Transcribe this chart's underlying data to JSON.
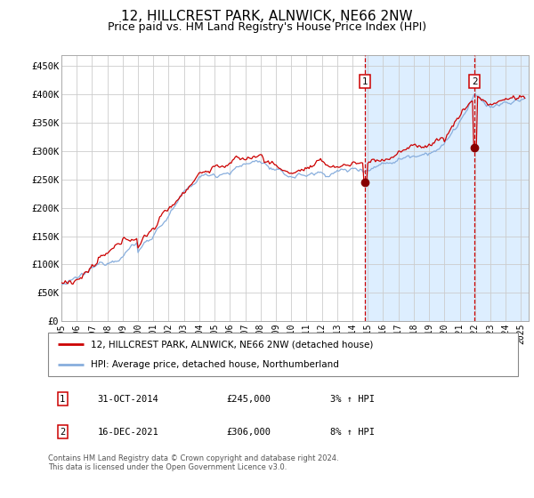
{
  "title": "12, HILLCREST PARK, ALNWICK, NE66 2NW",
  "subtitle": "Price paid vs. HM Land Registry's House Price Index (HPI)",
  "title_fontsize": 11,
  "subtitle_fontsize": 9,
  "ylabel_ticks": [
    "£0",
    "£50K",
    "£100K",
    "£150K",
    "£200K",
    "£250K",
    "£300K",
    "£350K",
    "£400K",
    "£450K"
  ],
  "ytick_values": [
    0,
    50000,
    100000,
    150000,
    200000,
    250000,
    300000,
    350000,
    400000,
    450000
  ],
  "ylim": [
    0,
    470000
  ],
  "xlim_start": 1995.0,
  "xlim_end": 2025.5,
  "sale1_x": 2014.83,
  "sale1_y": 245000,
  "sale2_x": 2021.96,
  "sale2_y": 306000,
  "shaded_region_start": 2014.83,
  "line1_color": "#cc0000",
  "line2_color": "#88aedd",
  "shaded_color": "#ddeeff",
  "dashed_color": "#cc0000",
  "background_color": "#ffffff",
  "grid_color": "#cccccc",
  "legend1_label": "12, HILLCREST PARK, ALNWICK, NE66 2NW (detached house)",
  "legend2_label": "HPI: Average price, detached house, Northumberland",
  "sale1_date": "31-OCT-2014",
  "sale1_price": "£245,000",
  "sale1_hpi": "3% ↑ HPI",
  "sale2_date": "16-DEC-2021",
  "sale2_price": "£306,000",
  "sale2_hpi": "8% ↑ HPI",
  "footnote": "Contains HM Land Registry data © Crown copyright and database right 2024.\nThis data is licensed under the Open Government Licence v3.0."
}
